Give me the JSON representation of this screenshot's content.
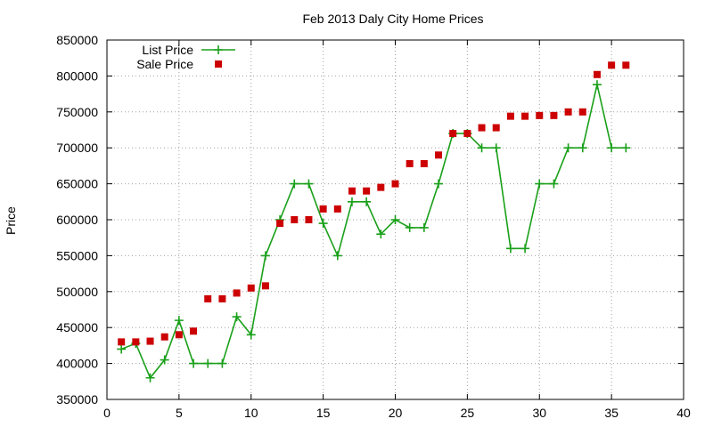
{
  "chart_data": {
    "type": "line",
    "title": "Feb 2013 Daly City Home Prices",
    "xlabel": "",
    "ylabel": "Price",
    "xlim": [
      0,
      40
    ],
    "ylim": [
      350000,
      850000
    ],
    "x_ticks": [
      0,
      5,
      10,
      15,
      20,
      25,
      30,
      35,
      40
    ],
    "y_ticks": [
      350000,
      400000,
      450000,
      500000,
      550000,
      600000,
      650000,
      700000,
      750000,
      800000,
      850000
    ],
    "grid": true,
    "legend_position": "top-left",
    "series": [
      {
        "name": "List Price",
        "style": "line-with-plus-markers",
        "color": "#1aa01a",
        "x": [
          1,
          2,
          3,
          4,
          5,
          6,
          7,
          8,
          9,
          10,
          11,
          12,
          13,
          14,
          15,
          16,
          17,
          18,
          19,
          20,
          21,
          22,
          23,
          24,
          25,
          26,
          27,
          28,
          29,
          30,
          31,
          32,
          33,
          34,
          35,
          36
        ],
        "values": [
          420000,
          428000,
          380000,
          405000,
          460000,
          400000,
          400000,
          400000,
          465000,
          440000,
          550000,
          600000,
          650000,
          650000,
          595000,
          550000,
          625000,
          625000,
          580000,
          600000,
          589000,
          589000,
          650000,
          720000,
          720000,
          700000,
          700000,
          560000,
          560000,
          650000,
          650000,
          700000,
          700000,
          788000,
          700000,
          700000
        ]
      },
      {
        "name": "Sale Price",
        "style": "square-markers",
        "color": "#cc0000",
        "x": [
          1,
          2,
          3,
          4,
          5,
          6,
          7,
          8,
          9,
          10,
          11,
          12,
          13,
          14,
          15,
          16,
          17,
          18,
          19,
          20,
          21,
          22,
          23,
          24,
          25,
          26,
          27,
          28,
          29,
          30,
          31,
          32,
          33,
          34,
          35,
          36
        ],
        "values": [
          430000,
          430000,
          431000,
          437000,
          440000,
          445000,
          490000,
          490000,
          498000,
          505000,
          508000,
          595000,
          600000,
          600000,
          615000,
          615000,
          640000,
          640000,
          645000,
          650000,
          678000,
          678000,
          690000,
          720000,
          720000,
          728000,
          728000,
          744000,
          744000,
          745000,
          745000,
          750000,
          750000,
          802000,
          815000,
          815000
        ]
      }
    ]
  }
}
